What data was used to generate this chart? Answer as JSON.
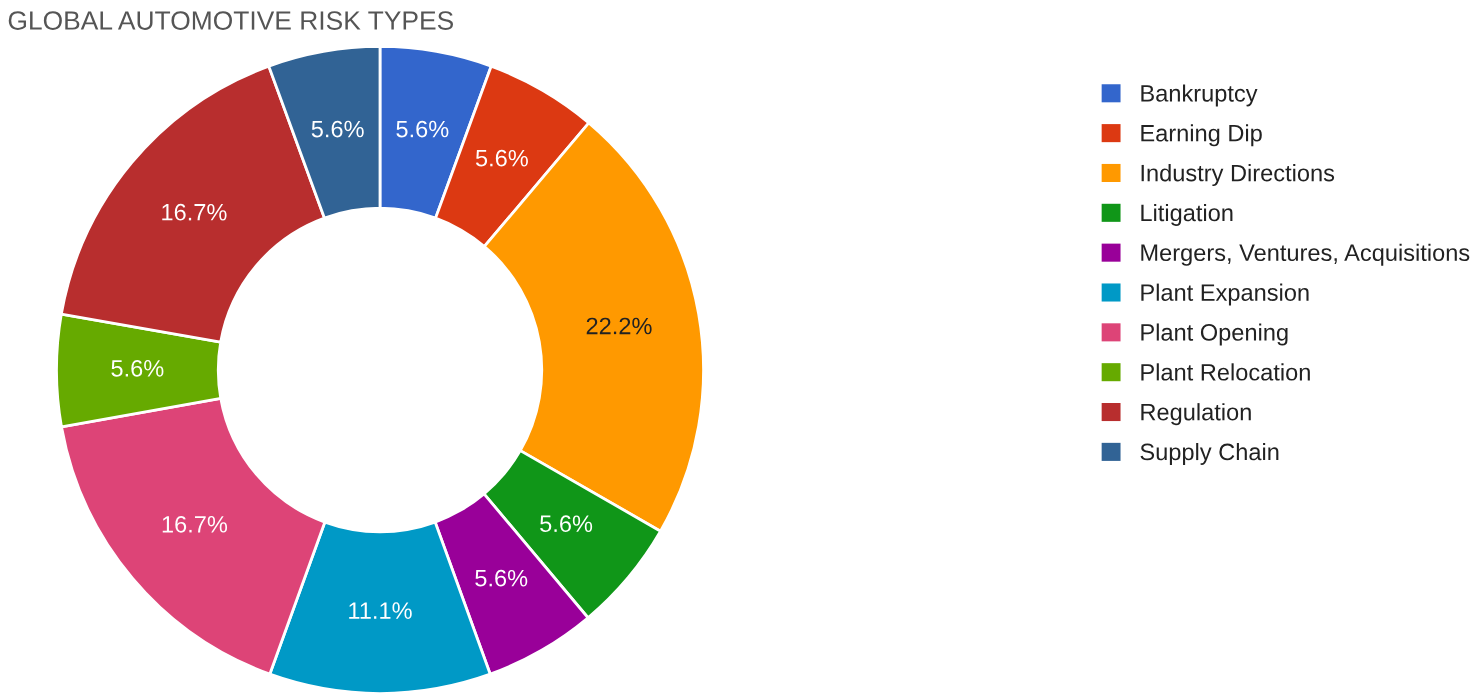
{
  "chart_data": {
    "type": "donut",
    "title": "GLOBAL AUTOMOTIVE RISK TYPES",
    "categories": [
      "Bankruptcy",
      "Earning Dip",
      "Industry Directions",
      "Litigation",
      "Mergers, Ventures, Acquisitions",
      "Plant Expansion",
      "Plant Opening",
      "Plant Relocation",
      "Regulation",
      "Supply Chain"
    ],
    "values": [
      5.6,
      5.6,
      22.2,
      5.6,
      5.6,
      11.1,
      16.7,
      5.6,
      16.7,
      5.6
    ],
    "value_labels": [
      "5.6%",
      "5.6%",
      "22.2%",
      "5.6%",
      "5.6%",
      "11.1%",
      "16.7%",
      "5.6%",
      "16.7%",
      "5.6%"
    ],
    "colors": [
      "#3366cc",
      "#dc3912",
      "#ff9900",
      "#109618",
      "#990099",
      "#0099c6",
      "#dd4477",
      "#66aa00",
      "#b82e2e",
      "#316395"
    ],
    "legend": "right"
  }
}
